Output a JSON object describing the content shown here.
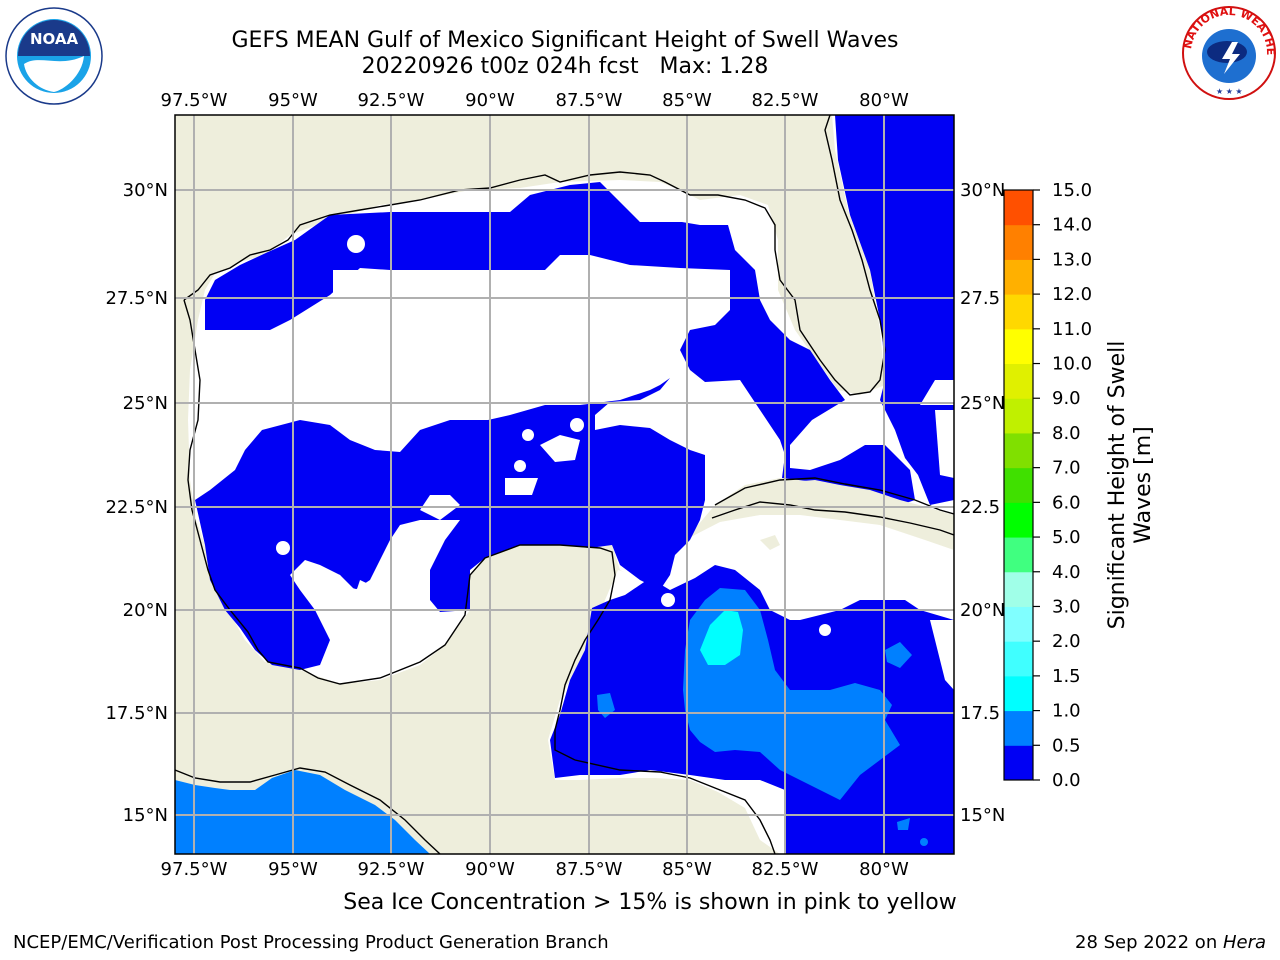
{
  "header": {
    "title_line1": "GEFS MEAN Gulf of Mexico Significant Height of Swell Waves",
    "title_line2": "20220926 t00z 024h fcst   Max: 1.28"
  },
  "logos": {
    "left": "NOAA",
    "left_ring_text": "NATIONAL OCEANIC AND ATMOSPHERIC ADMINISTRATION • U.S. DEPARTMENT OF COMMERCE",
    "right_ring_text": "NATIONAL WEATHER SERVICE"
  },
  "map": {
    "lon_labels": [
      "97.5°W",
      "95°W",
      "92.5°W",
      "90°W",
      "87.5°W",
      "85°W",
      "82.5°W",
      "80°W"
    ],
    "lat_labels_left": [
      "30°N",
      "27.5°N",
      "25°N",
      "22.5°N",
      "20°N",
      "17.5°N",
      "15°N"
    ],
    "lat_labels_right": [
      "30°N",
      "27.5",
      "25°N",
      "22.5",
      "20°N",
      "17.5",
      "15°N"
    ],
    "colors": {
      "land": "#eeeedc",
      "ocean_low": "#0000f4",
      "ocean_mid": "#0080ff",
      "ocean_hi": "#00ffff",
      "no_data": "#ffffff",
      "grid": "#b0b0b0"
    }
  },
  "colorbar": {
    "label_line1": "Significant Height of Swell",
    "label_line2": "Waves [m]",
    "ticks": [
      "0.0",
      "0.5",
      "1.0",
      "1.5",
      "2.0",
      "3.0",
      "4.0",
      "5.0",
      "6.0",
      "7.0",
      "8.0",
      "9.0",
      "10.0",
      "11.0",
      "12.0",
      "13.0",
      "14.0",
      "15.0"
    ],
    "colors": [
      "#0000f4",
      "#0080ff",
      "#00ffff",
      "#40ffff",
      "#80ffff",
      "#a0ffe8",
      "#40ff80",
      "#00ff00",
      "#40e000",
      "#80e000",
      "#c0f000",
      "#e0f000",
      "#ffff00",
      "#ffd800",
      "#ffb000",
      "#ff8000",
      "#ff5000",
      "#ff2000",
      "#ff0000"
    ]
  },
  "footer": {
    "note": "Sea Ice Concentration > 15% is shown in pink to yellow",
    "left": "NCEP/EMC/Verification Post Processing Product Generation Branch",
    "right_prefix": "28 Sep 2022 on ",
    "right_host": "Hera"
  }
}
